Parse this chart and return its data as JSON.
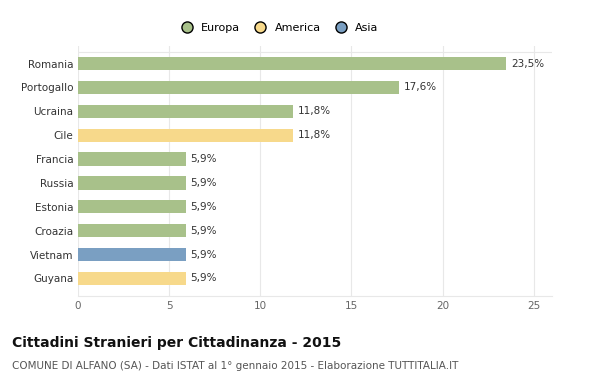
{
  "countries": [
    "Romania",
    "Portogallo",
    "Ucraina",
    "Cile",
    "Francia",
    "Russia",
    "Estonia",
    "Croazia",
    "Vietnam",
    "Guyana"
  ],
  "values": [
    23.5,
    17.6,
    11.8,
    11.8,
    5.9,
    5.9,
    5.9,
    5.9,
    5.9,
    5.9
  ],
  "labels": [
    "23,5%",
    "17,6%",
    "11,8%",
    "11,8%",
    "5,9%",
    "5,9%",
    "5,9%",
    "5,9%",
    "5,9%",
    "5,9%"
  ],
  "continents": [
    "Europa",
    "Europa",
    "Europa",
    "America",
    "Europa",
    "Europa",
    "Europa",
    "Europa",
    "Asia",
    "America"
  ],
  "colors": {
    "Europa": "#a8c18a",
    "America": "#f7d98b",
    "Asia": "#7a9fc2"
  },
  "legend_labels": [
    "Europa",
    "America",
    "Asia"
  ],
  "legend_colors": [
    "#a8c18a",
    "#f7d98b",
    "#7a9fc2"
  ],
  "xlim": [
    0,
    26
  ],
  "xticks": [
    0,
    5,
    10,
    15,
    20,
    25
  ],
  "title": "Cittadini Stranieri per Cittadinanza - 2015",
  "subtitle": "COMUNE DI ALFANO (SA) - Dati ISTAT al 1° gennaio 2015 - Elaborazione TUTTITALIA.IT",
  "bg_color": "#ffffff",
  "grid_color": "#e8e8e8",
  "title_fontsize": 10,
  "subtitle_fontsize": 7.5,
  "label_fontsize": 7.5,
  "tick_fontsize": 7.5,
  "legend_fontsize": 8
}
